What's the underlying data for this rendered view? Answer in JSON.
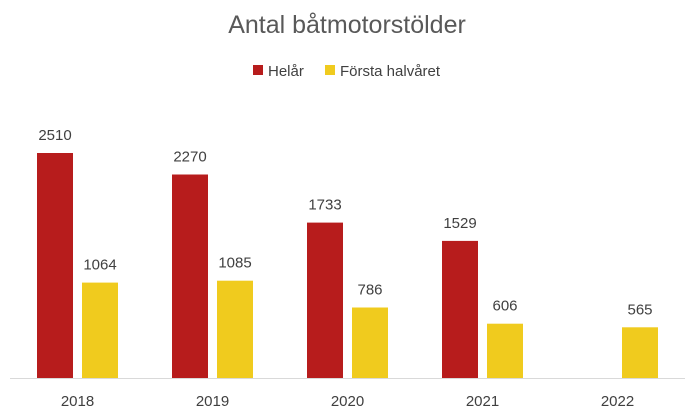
{
  "chart_data": {
    "type": "bar",
    "title": "Antal båtmotorstölder",
    "xlabel": "",
    "ylabel": "",
    "categories": [
      "2018",
      "2019",
      "2020",
      "2021",
      "2022"
    ],
    "series": [
      {
        "name": "Helår",
        "color": "#b71c1c",
        "values": [
          2510,
          2270,
          1733,
          1529,
          null
        ]
      },
      {
        "name": "Första halvåret",
        "color": "#f0cb1e",
        "values": [
          1064,
          1085,
          786,
          606,
          565
        ]
      }
    ],
    "ylim": [
      0,
      2500
    ],
    "grid": false,
    "legend_position": "top-center",
    "data_labels": true
  }
}
